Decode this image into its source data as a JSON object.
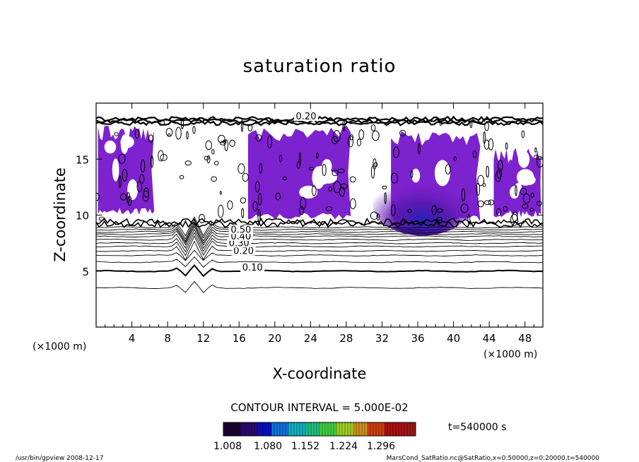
{
  "chart_data": {
    "type": "contour",
    "title": "saturation ratio",
    "xlabel": "X-coordinate",
    "ylabel": "Z-coordinate",
    "x_unit": "(×1000 m)",
    "y_unit": "(×1000 m)",
    "xlim": [
      0,
      50
    ],
    "ylim": [
      0,
      20
    ],
    "x_ticks": [
      4,
      8,
      12,
      16,
      20,
      24,
      28,
      32,
      36,
      40,
      44,
      48
    ],
    "y_ticks": [
      5,
      10,
      15
    ],
    "contour_interval_text": "CONTOUR INTERVAL = 5.000E-02",
    "time_text": "t=540000 s",
    "colorbar": {
      "tick_labels": [
        "1.008",
        "1.080",
        "1.152",
        "1.224",
        "1.296"
      ],
      "colors": [
        "#1a0030",
        "#2a0a70",
        "#0a10c0",
        "#1070e0",
        "#10b0c0",
        "#20c080",
        "#40d040",
        "#a0d020",
        "#d09020",
        "#d04010",
        "#b01010",
        "#a01818"
      ]
    },
    "contour_labels": [
      {
        "text": "0.10",
        "x": 17.5,
        "y": 5.1
      },
      {
        "text": "0.20",
        "x": 16.5,
        "y": 6.6
      },
      {
        "text": "0.30",
        "x": 16.0,
        "y": 7.3
      },
      {
        "text": "0.40",
        "x": 16.2,
        "y": 7.9
      },
      {
        "text": "0.50",
        "x": 16.2,
        "y": 8.5
      },
      {
        "text": "0.20",
        "x": 23.5,
        "y": 18.6
      }
    ],
    "saturated_regions": [
      {
        "x0": 0.2,
        "x1": 6.5,
        "z0": 10.0,
        "z1": 18.0
      },
      {
        "x0": 17.0,
        "x1": 28.5,
        "z0": 9.6,
        "z1": 18.0
      },
      {
        "x0": 33.0,
        "x1": 43.0,
        "z0": 9.4,
        "z1": 17.5
      },
      {
        "x0": 44.5,
        "x1": 49.8,
        "z0": 9.8,
        "z1": 16.0
      }
    ],
    "grid": false
  },
  "footer": {
    "left": "/usr/bin/gpview   2008-12-17",
    "right": "MarsCond_SatRatio.nc@SatRatio,x=0:50000,z=0:20000,t=540000"
  }
}
